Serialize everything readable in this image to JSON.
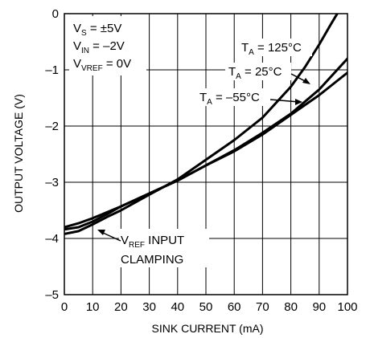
{
  "chart_data": {
    "type": "line",
    "title": "",
    "xlabel": "SINK CURRENT (mA)",
    "ylabel": "OUTPUT VOLTAGE (V)",
    "xlim": [
      0,
      100
    ],
    "ylim": [
      -5,
      0
    ],
    "grid": true,
    "x_ticks": [
      "0",
      "10",
      "20",
      "30",
      "40",
      "50",
      "60",
      "70",
      "80",
      "90",
      "100"
    ],
    "y_ticks": [
      "0",
      "–1",
      "–2",
      "–3",
      "–4",
      "–5"
    ],
    "conditions": [
      {
        "main": "V",
        "sub": "S",
        "rest": " = ±5V"
      },
      {
        "main": "V",
        "sub": "IN",
        "rest": " = –2V"
      },
      {
        "main": "V",
        "sub": "VREF",
        "rest": " = 0V"
      }
    ],
    "series": [
      {
        "name": "125°C",
        "label_main": "T",
        "label_sub": "A",
        "label_rest": " = 125°C",
        "x": [
          0,
          5,
          10,
          15,
          20,
          30,
          40,
          50,
          60,
          70,
          80,
          85,
          90,
          94,
          97,
          100
        ],
        "y": [
          -3.92,
          -3.87,
          -3.75,
          -3.62,
          -3.5,
          -3.22,
          -2.95,
          -2.6,
          -2.25,
          -1.85,
          -1.3,
          -0.95,
          -0.55,
          -0.2,
          0.05,
          0.3
        ]
      },
      {
        "name": "25°C",
        "label_main": "T",
        "label_sub": "A",
        "label_rest": " = 25°C",
        "x": [
          0,
          5,
          10,
          15,
          20,
          30,
          40,
          50,
          60,
          70,
          80,
          90,
          100
        ],
        "y": [
          -3.84,
          -3.8,
          -3.7,
          -3.57,
          -3.43,
          -3.2,
          -2.97,
          -2.7,
          -2.43,
          -2.12,
          -1.78,
          -1.35,
          -0.8
        ]
      },
      {
        "name": "–55°C",
        "label_main": "T",
        "label_sub": "A",
        "label_rest": " = –55°C",
        "x": [
          0,
          5,
          10,
          20,
          30,
          40,
          50,
          60,
          70,
          80,
          90,
          100
        ],
        "y": [
          -3.8,
          -3.73,
          -3.64,
          -3.43,
          -3.2,
          -2.97,
          -2.7,
          -2.45,
          -2.15,
          -1.8,
          -1.45,
          -1.05
        ]
      }
    ],
    "annotation": {
      "main": "V",
      "sub": "REF",
      "rest": " INPUT",
      "line2": "CLAMPING"
    }
  }
}
